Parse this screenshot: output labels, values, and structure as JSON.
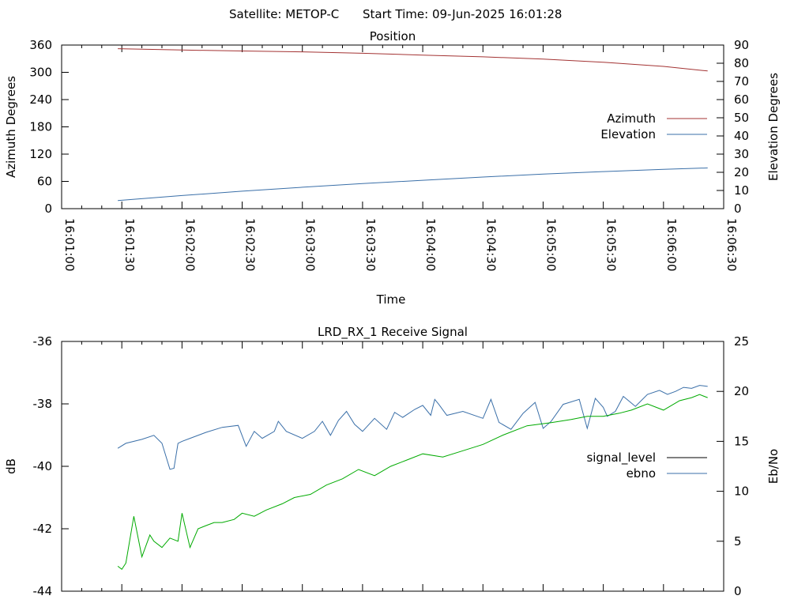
{
  "header": {
    "satellite": "Satellite: METOP-C",
    "start_time": "Start Time: 09-Jun-2025 16:01:28"
  },
  "chart_data": [
    {
      "type": "line",
      "title": "Position",
      "xlabel": "Time",
      "y1label": "Azimuth Degrees",
      "y2label": "Elevation Degrees",
      "x_ticks": [
        "16:01:00",
        "16:01:30",
        "16:02:00",
        "16:02:30",
        "16:03:00",
        "16:03:30",
        "16:04:00",
        "16:04:30",
        "16:05:00",
        "16:05:30",
        "16:06:00",
        "16:06:30"
      ],
      "y1_ticks": [
        "0",
        "60",
        "120",
        "180",
        "240",
        "300",
        "360"
      ],
      "y2_ticks": [
        "0",
        "10",
        "20",
        "30",
        "40",
        "50",
        "60",
        "70",
        "80",
        "90"
      ],
      "y1lim": [
        0,
        360
      ],
      "y2lim": [
        0,
        90
      ],
      "xlim_seconds": [
        0,
        330
      ],
      "legend_position": "right",
      "series": [
        {
          "name": "Azimuth",
          "axis": "y1",
          "color": "#a33333",
          "t": [
            28,
            60,
            90,
            120,
            150,
            180,
            210,
            240,
            270,
            300,
            322
          ],
          "values": [
            352,
            349,
            347,
            345,
            342,
            338,
            334,
            329,
            322,
            313,
            303
          ]
        },
        {
          "name": "Elevation",
          "axis": "y2",
          "color": "#3a6fa8",
          "t": [
            28,
            60,
            90,
            120,
            150,
            180,
            210,
            240,
            270,
            300,
            322
          ],
          "values": [
            4.5,
            7.2,
            9.6,
            11.8,
            13.8,
            15.6,
            17.4,
            19.0,
            20.4,
            21.6,
            22.4
          ]
        }
      ]
    },
    {
      "type": "line",
      "title": "LRD_RX_1 Receive Signal",
      "y1label": "dB",
      "y2label": "Eb/No",
      "y1_ticks": [
        "-44",
        "-42",
        "-40",
        "-38",
        "-36"
      ],
      "y2_ticks": [
        "0",
        "5",
        "10",
        "15",
        "20",
        "25"
      ],
      "y1lim": [
        -44,
        -36
      ],
      "y2lim": [
        0,
        25
      ],
      "xlim_seconds": [
        0,
        330
      ],
      "legend_position": "right",
      "series": [
        {
          "name": "signal_level",
          "axis": "y1",
          "color": "#000000",
          "legend_only": true,
          "t": [],
          "values": []
        },
        {
          "name": "ebno",
          "axis": "y2",
          "color": "#3a6fa8",
          "t": [
            28,
            32,
            40,
            46,
            50,
            54,
            56,
            58,
            60,
            64,
            72,
            80,
            88,
            92,
            96,
            100,
            106,
            108,
            112,
            120,
            126,
            130,
            134,
            138,
            142,
            146,
            150,
            156,
            162,
            166,
            170,
            176,
            180,
            184,
            186,
            188,
            192,
            200,
            210,
            214,
            218,
            224,
            230,
            236,
            240,
            244,
            250,
            258,
            262,
            266,
            270,
            272,
            276,
            280,
            286,
            292,
            298,
            302,
            306,
            310,
            314,
            318,
            322
          ],
          "values": [
            14.3,
            14.8,
            15.2,
            15.6,
            14.8,
            12.2,
            12.3,
            14.8,
            15.0,
            15.3,
            15.9,
            16.4,
            16.6,
            14.5,
            16.0,
            15.3,
            16.0,
            17.0,
            16.0,
            15.3,
            16.0,
            17.0,
            15.6,
            17.1,
            18.0,
            16.7,
            16.0,
            17.3,
            16.2,
            17.9,
            17.4,
            18.2,
            18.6,
            17.6,
            19.2,
            18.7,
            17.6,
            18.0,
            17.3,
            19.2,
            16.9,
            16.2,
            17.8,
            18.9,
            16.3,
            17.0,
            18.7,
            19.2,
            16.3,
            19.3,
            18.4,
            17.5,
            18.0,
            19.5,
            18.5,
            19.7,
            20.1,
            19.7,
            20.0,
            20.4,
            20.3,
            20.6,
            20.5
          ]
        },
        {
          "name": "",
          "axis": "y1",
          "color": "#00aa00",
          "t": [
            28,
            30,
            32,
            36,
            40,
            44,
            46,
            50,
            54,
            58,
            60,
            64,
            68,
            72,
            76,
            80,
            86,
            90,
            96,
            102,
            110,
            116,
            124,
            132,
            140,
            148,
            156,
            164,
            172,
            180,
            190,
            200,
            210,
            220,
            232,
            244,
            254,
            262,
            270,
            278,
            284,
            292,
            300,
            308,
            314,
            318,
            322
          ],
          "values": [
            -43.2,
            -43.3,
            -43.1,
            -41.6,
            -42.9,
            -42.2,
            -42.4,
            -42.6,
            -42.3,
            -42.4,
            -41.5,
            -42.6,
            -42.0,
            -41.9,
            -41.8,
            -41.8,
            -41.7,
            -41.5,
            -41.6,
            -41.4,
            -41.2,
            -41.0,
            -40.9,
            -40.6,
            -40.4,
            -40.1,
            -40.3,
            -40.0,
            -39.8,
            -39.6,
            -39.7,
            -39.5,
            -39.3,
            -39.0,
            -38.7,
            -38.6,
            -38.5,
            -38.4,
            -38.4,
            -38.3,
            -38.2,
            -38.0,
            -38.2,
            -37.9,
            -37.8,
            -37.7,
            -37.8
          ]
        }
      ]
    }
  ]
}
